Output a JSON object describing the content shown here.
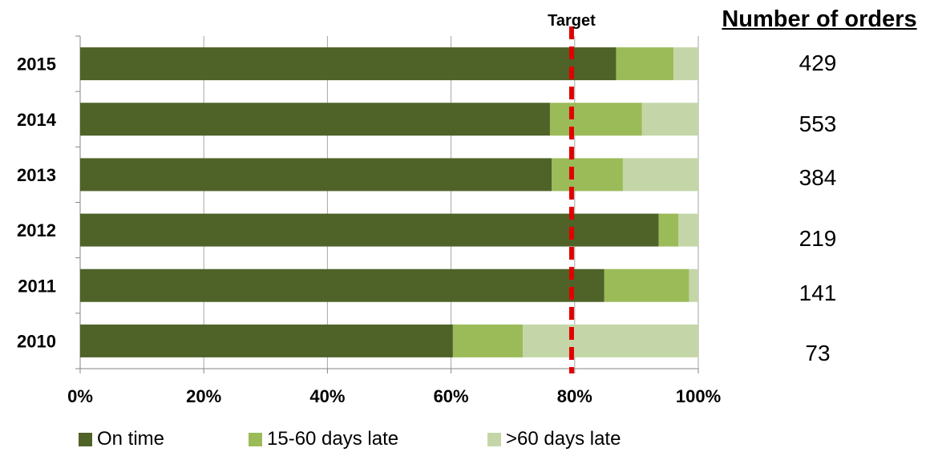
{
  "chart_data": {
    "type": "bar",
    "orientation": "horizontal",
    "stacked": true,
    "categories": [
      "2015",
      "2014",
      "2013",
      "2012",
      "2011",
      "2010"
    ],
    "series": [
      {
        "name": "On time",
        "color": "#4f6228",
        "values": [
          86.7,
          76.0,
          76.3,
          93.6,
          84.8,
          60.3
        ]
      },
      {
        "name": "15-60 days late",
        "color": "#9bbb59",
        "values": [
          9.3,
          14.9,
          11.5,
          3.2,
          13.7,
          11.3
        ]
      },
      {
        "name": ">60 days late",
        "color": "#c4d6a8",
        "values": [
          4.0,
          9.1,
          12.2,
          3.2,
          1.5,
          28.4
        ]
      }
    ],
    "x_ticks": [
      "0%",
      "20%",
      "40%",
      "60%",
      "80%",
      "100%"
    ],
    "xlim": [
      0,
      100
    ],
    "grid": true,
    "target": {
      "label": "Target",
      "value": 79.5,
      "color": "#e00000"
    },
    "legend_position": "bottom"
  },
  "orders": {
    "title": "Number of orders",
    "counts": [
      "429",
      "553",
      "384",
      "219",
      "141",
      "73"
    ]
  }
}
